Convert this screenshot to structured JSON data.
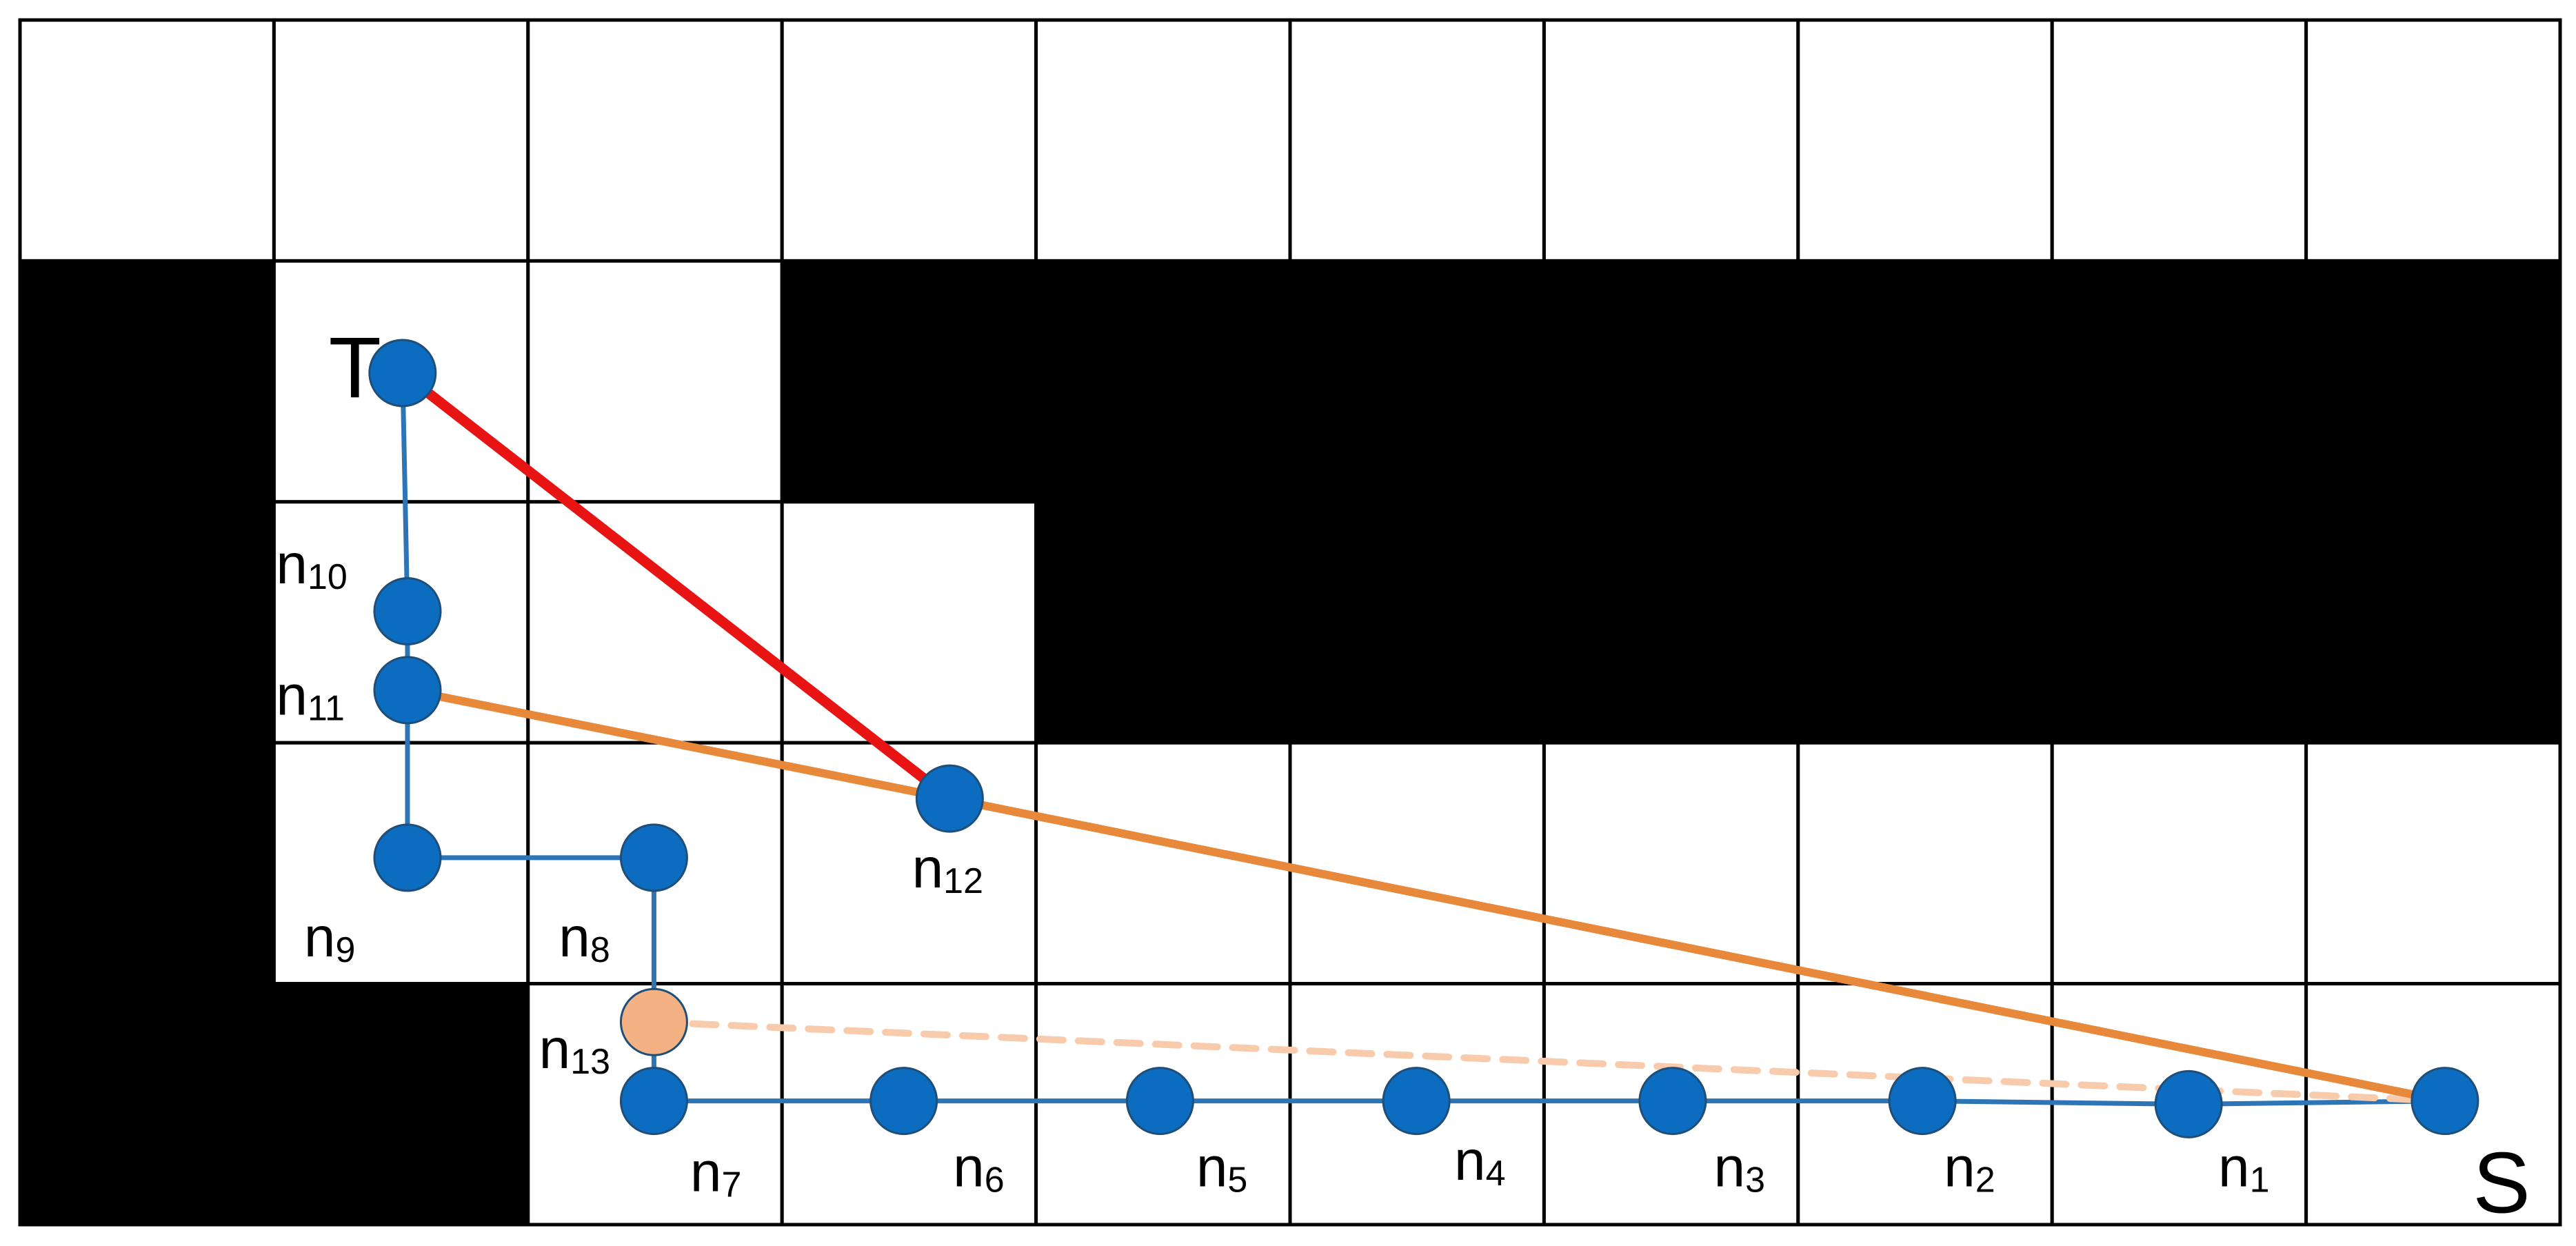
{
  "nodes": [
    {
      "id": "T",
      "name": "T"
    },
    {
      "id": "n10",
      "name": "n",
      "subscript": "10"
    },
    {
      "id": "n11",
      "name": "n",
      "subscript": "11"
    },
    {
      "id": "n9",
      "name": "n",
      "subscript": "9"
    },
    {
      "id": "n8",
      "name": "n",
      "subscript": "8"
    },
    {
      "id": "n13",
      "name": "n",
      "subscript": "13"
    },
    {
      "id": "n7",
      "name": "n",
      "subscript": "7"
    },
    {
      "id": "n6",
      "name": "n",
      "subscript": "6"
    },
    {
      "id": "n5",
      "name": "n",
      "subscript": "5"
    },
    {
      "id": "n4",
      "name": "n",
      "subscript": "4"
    },
    {
      "id": "n3",
      "name": "n",
      "subscript": "3"
    },
    {
      "id": "n2",
      "name": "n",
      "subscript": "2"
    },
    {
      "id": "n1",
      "name": "n",
      "subscript": "1"
    },
    {
      "id": "S",
      "name": "S"
    },
    {
      "id": "n12",
      "name": "n",
      "subscript": "12"
    }
  ]
}
